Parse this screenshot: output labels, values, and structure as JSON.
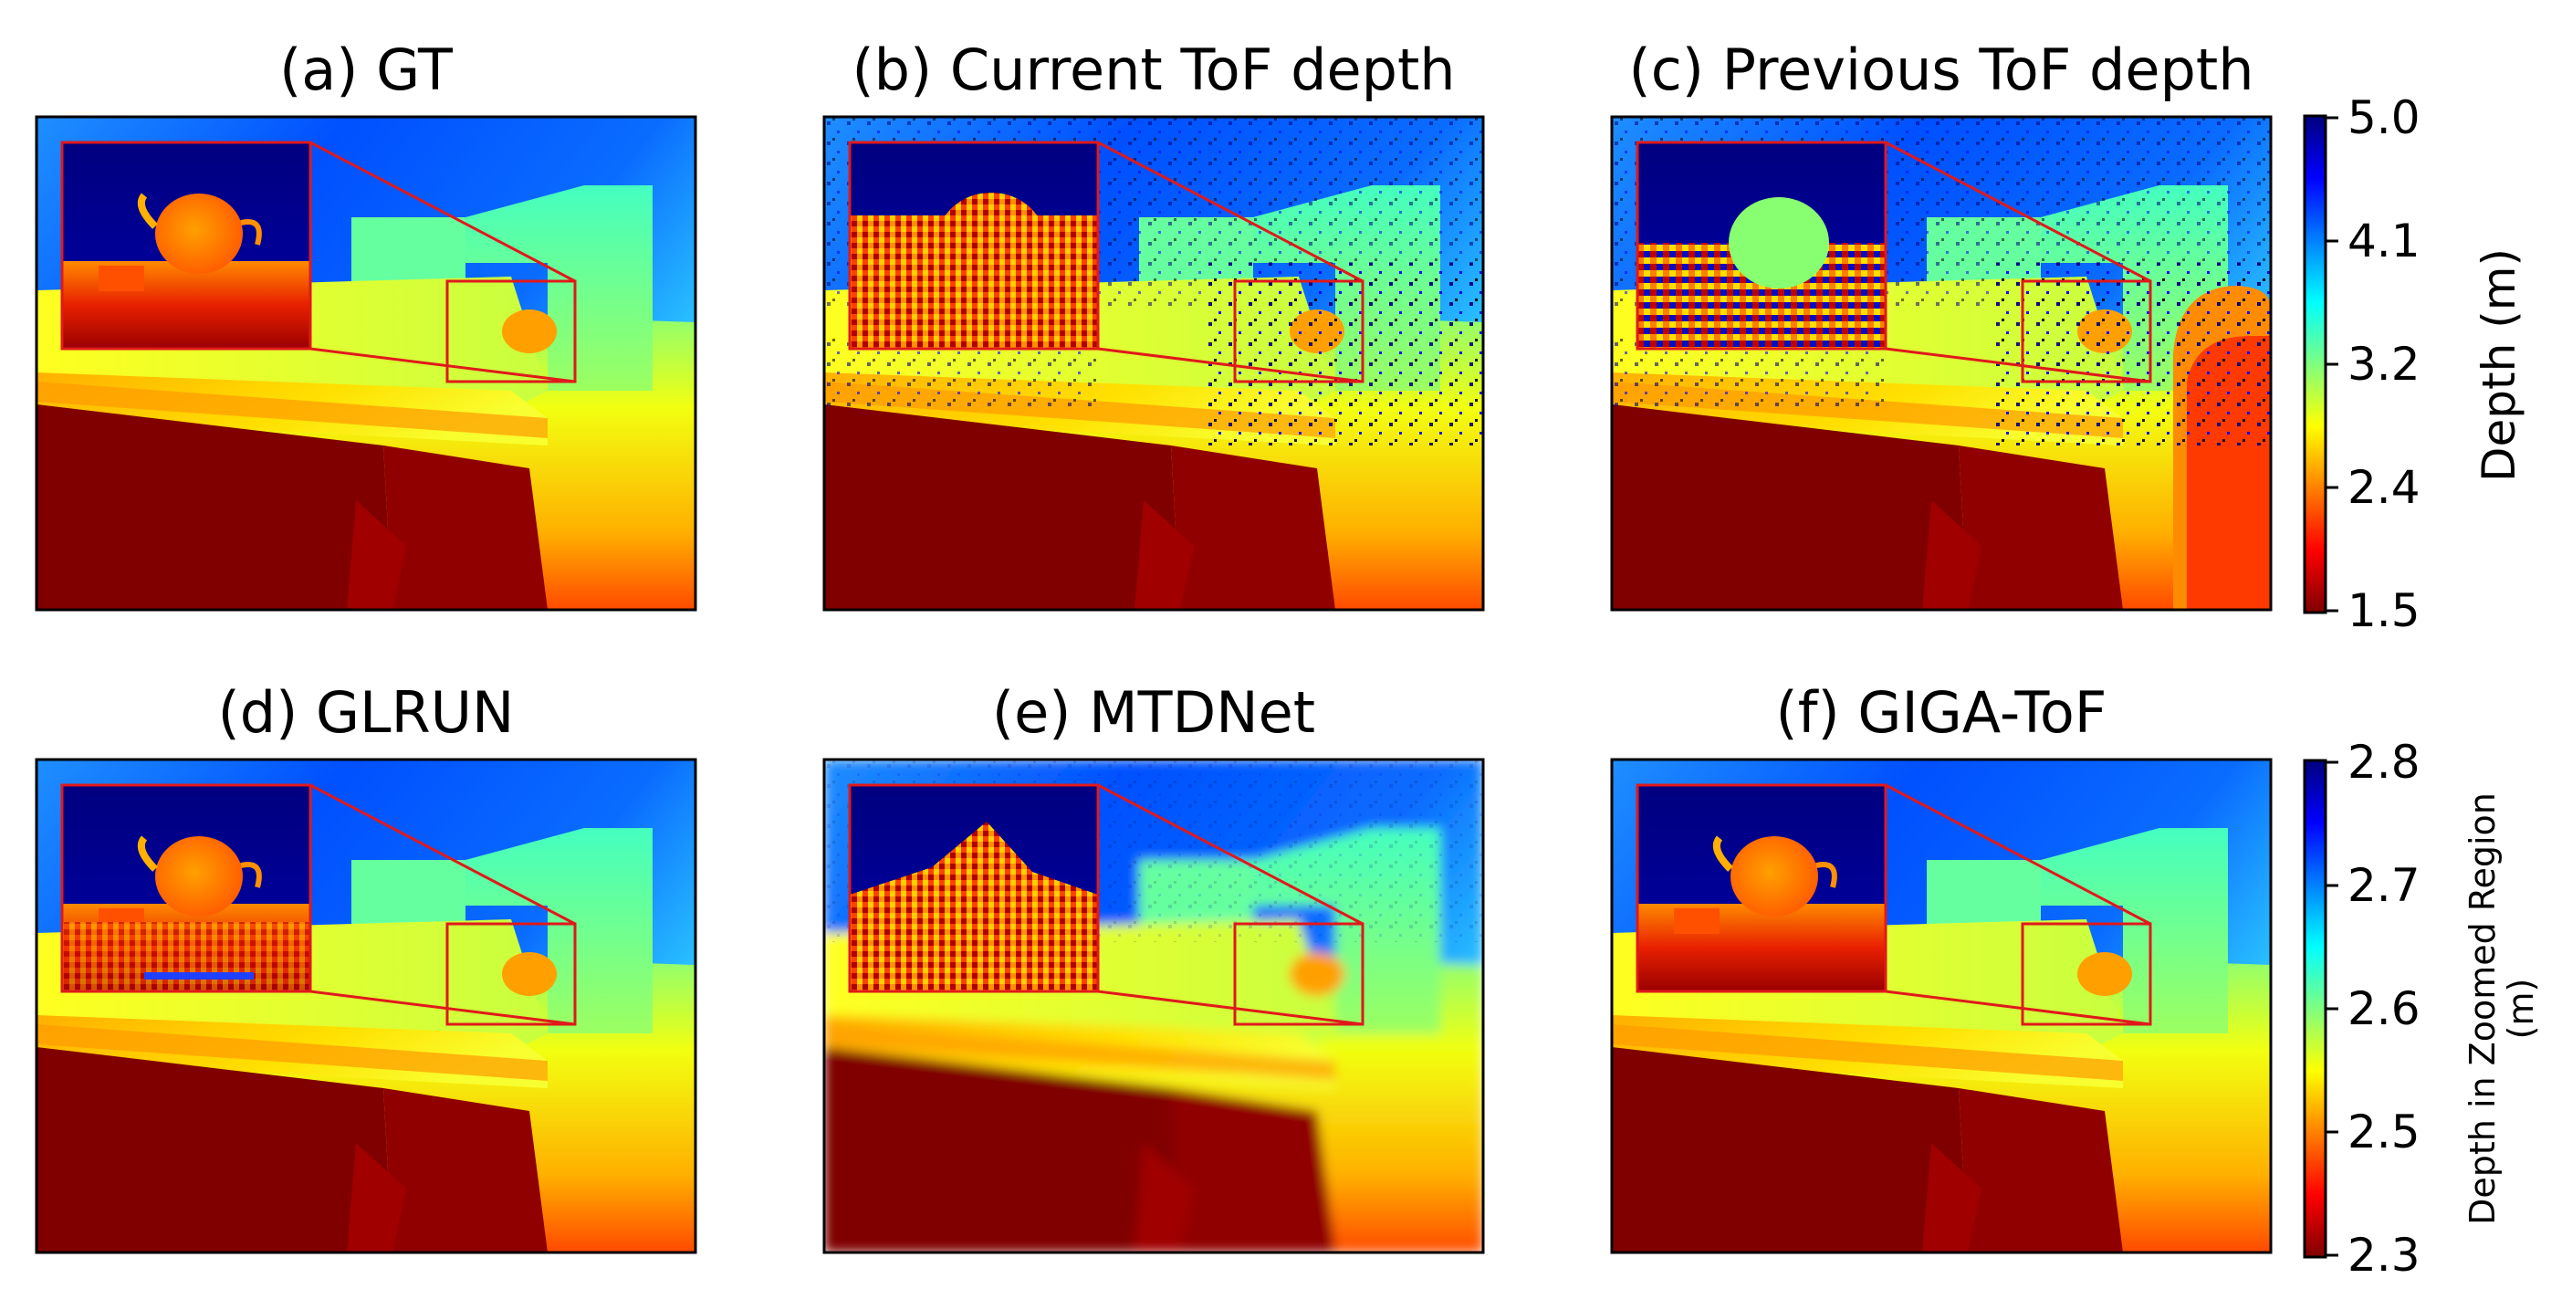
{
  "panels": [
    {
      "id": "a",
      "title": "(a) GT",
      "style": "gt"
    },
    {
      "id": "b",
      "title": "(b) Current ToF depth",
      "style": "noisy"
    },
    {
      "id": "c",
      "title": "(c) Previous ToF depth",
      "style": "prev"
    },
    {
      "id": "d",
      "title": "(d) GLRUN",
      "style": "glrun"
    },
    {
      "id": "e",
      "title": "(e) MTDNet",
      "style": "blurry"
    },
    {
      "id": "f",
      "title": "(f) GIGA-ToF",
      "style": "gt"
    }
  ],
  "colorbar_depth": {
    "label": "Depth (m)",
    "ticks": [
      "5.0",
      "4.1",
      "3.2",
      "2.4",
      "1.5"
    ]
  },
  "colorbar_zoom": {
    "label_line1": "Depth in Zoomed Region",
    "label_line2": "(m)",
    "ticks": [
      "2.8",
      "2.7",
      "2.6",
      "2.5",
      "2.3"
    ]
  },
  "colors": {
    "zoom_box": "#e0191b",
    "jet": [
      "#00007f",
      "#0000ff",
      "#007fff",
      "#00ffff",
      "#7fff7f",
      "#ffff00",
      "#ff7f00",
      "#ff0000",
      "#7f0000"
    ]
  }
}
